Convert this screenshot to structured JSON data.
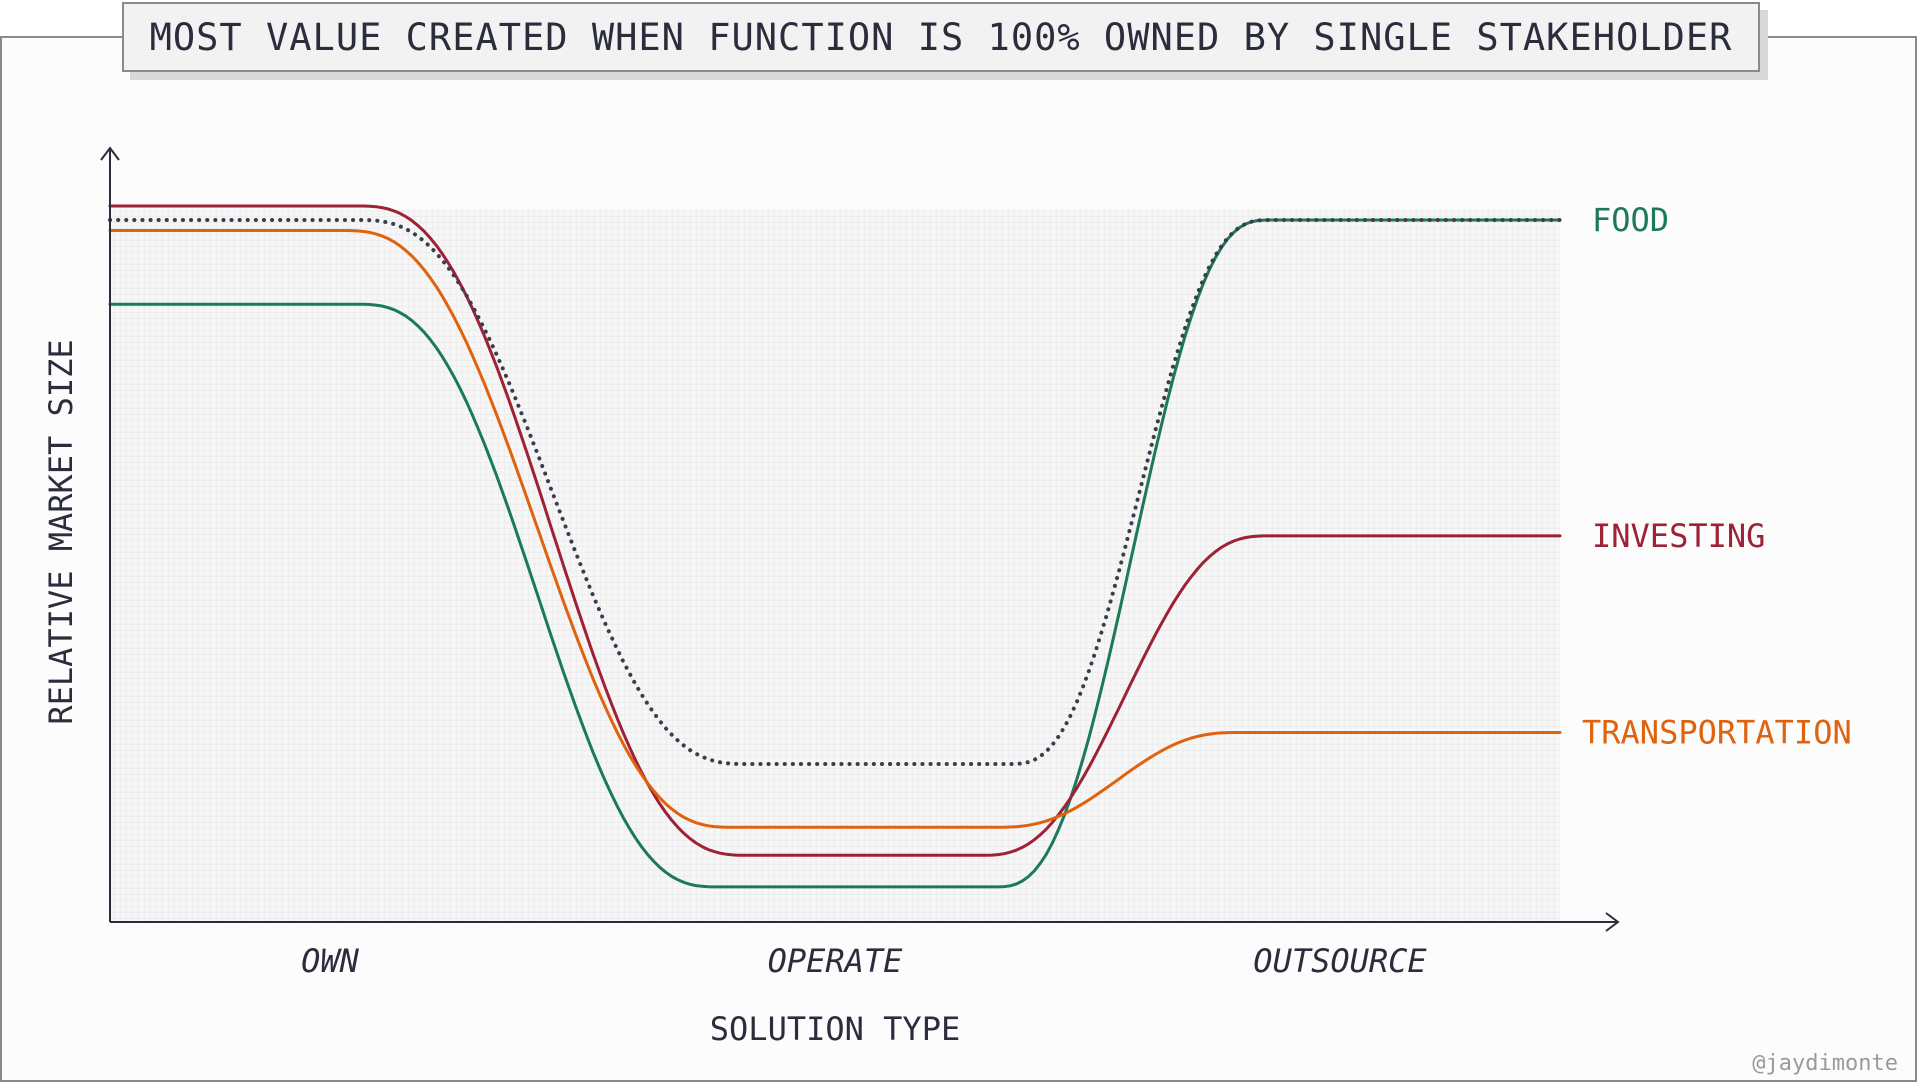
{
  "chart_data": {
    "type": "line",
    "title": "MOST VALUE CREATED WHEN FUNCTION IS 100% OWNED BY SINGLE STAKEHOLDER",
    "xlabel": "SOLUTION TYPE",
    "ylabel": "RELATIVE MARKET SIZE",
    "categories": [
      "OWN",
      "OPERATE",
      "OUTSOURCE"
    ],
    "grid": true,
    "legend": "right-end labels",
    "series": [
      {
        "name": "FOOD",
        "color": "#1b7a57",
        "style": "solid",
        "y_start": 0.88,
        "y_valley": 0.05,
        "y_end": 1.0
      },
      {
        "name": "INVESTING",
        "color": "#9e2135",
        "style": "solid",
        "y_start": 1.02,
        "y_valley": 0.095,
        "y_end": 0.55
      },
      {
        "name": "TRANSPORTATION",
        "color": "#e0620c",
        "style": "solid",
        "y_start": 0.985,
        "y_valley": 0.135,
        "y_end": 0.27
      },
      {
        "name": "",
        "color": "#3a3d4e",
        "style": "dotted",
        "y_start": 1.0,
        "y_valley": 0.225,
        "y_end": 1.0
      }
    ]
  },
  "credit": "@jaydimonte"
}
